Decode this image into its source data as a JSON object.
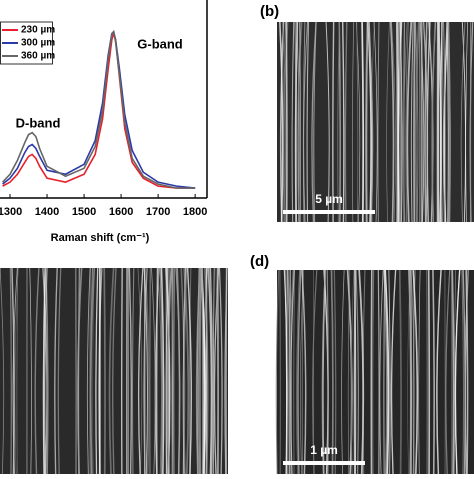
{
  "chart_data": {
    "type": "line",
    "x_label": "Raman shift (cm⁻¹)",
    "annotations": [
      "D-band",
      "G-band"
    ],
    "x": [
      1280,
      1300,
      1320,
      1340,
      1350,
      1360,
      1370,
      1380,
      1400,
      1450,
      1500,
      1530,
      1550,
      1565,
      1575,
      1580,
      1585,
      1595,
      1610,
      1630,
      1660,
      1700,
      1750,
      1800
    ],
    "series": [
      {
        "name": "230 µm",
        "color": "#e8202a",
        "values": [
          0.06,
          0.08,
          0.12,
          0.18,
          0.21,
          0.22,
          0.2,
          0.16,
          0.1,
          0.08,
          0.12,
          0.22,
          0.4,
          0.65,
          0.8,
          0.83,
          0.8,
          0.62,
          0.35,
          0.18,
          0.1,
          0.06,
          0.05,
          0.05
        ]
      },
      {
        "name": "300 µm",
        "color": "#2b3aa8",
        "values": [
          0.07,
          0.1,
          0.15,
          0.23,
          0.26,
          0.27,
          0.25,
          0.21,
          0.14,
          0.12,
          0.17,
          0.29,
          0.48,
          0.72,
          0.83,
          0.84,
          0.8,
          0.66,
          0.42,
          0.24,
          0.13,
          0.08,
          0.06,
          0.05
        ]
      },
      {
        "name": "360 µm",
        "color": "#666666",
        "values": [
          0.08,
          0.12,
          0.19,
          0.28,
          0.32,
          0.33,
          0.31,
          0.25,
          0.16,
          0.11,
          0.15,
          0.26,
          0.44,
          0.7,
          0.83,
          0.84,
          0.79,
          0.63,
          0.38,
          0.2,
          0.11,
          0.07,
          0.05,
          0.05
        ]
      }
    ],
    "xlim": [
      1273,
      1832
    ],
    "ylim": [
      0,
      1
    ],
    "xticks": [
      1300,
      1400,
      1500,
      1600,
      1700,
      1800
    ]
  },
  "panels": [
    {
      "label": "(b)",
      "scale_bar": "5 µm"
    },
    {
      "label": "(d)",
      "scale_bar": "1 µm"
    }
  ]
}
